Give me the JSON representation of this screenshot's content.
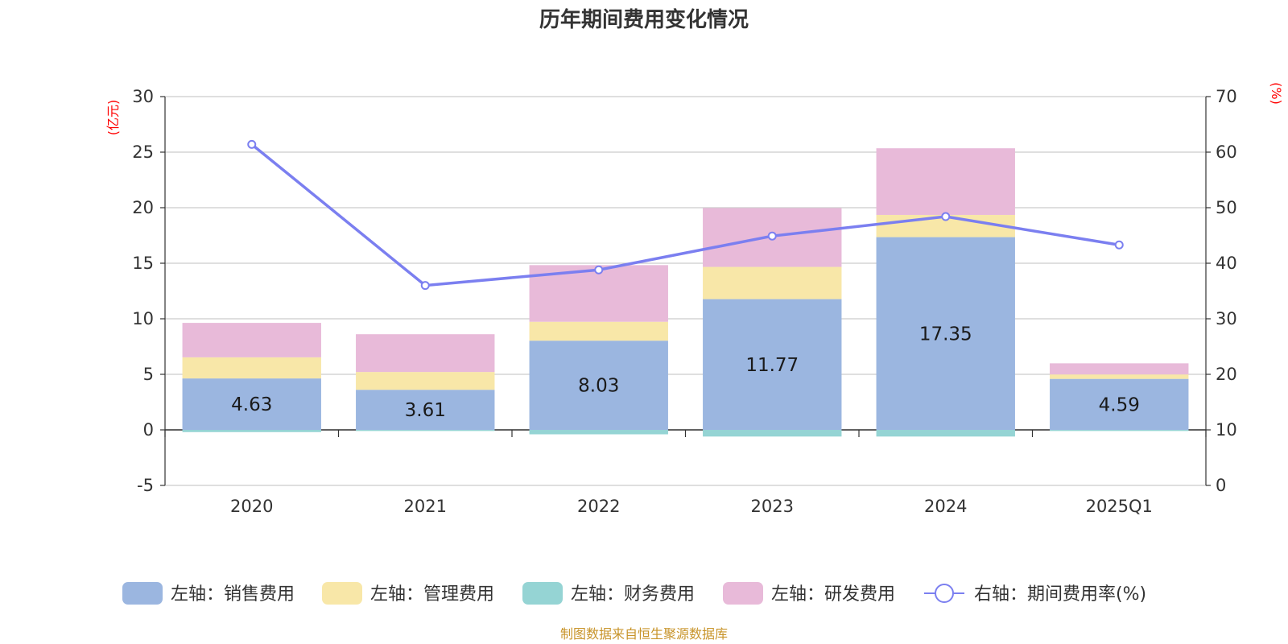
{
  "chart_data": {
    "type": "bar",
    "title": "历年期间费用变化情况",
    "categories": [
      "2020",
      "2021",
      "2022",
      "2023",
      "2024",
      "2025Q1"
    ],
    "left_axis": {
      "unit": "(亿元)",
      "ylim": [
        -5,
        30
      ],
      "ticks": [
        "-5",
        "0",
        "5",
        "10",
        "15",
        "20",
        "25",
        "30"
      ]
    },
    "right_axis": {
      "unit": "(%)",
      "ylim": [
        0,
        70
      ],
      "ticks": [
        "0",
        "10",
        "20",
        "30",
        "40",
        "50",
        "60",
        "70"
      ]
    },
    "series": [
      {
        "name": "左轴：销售费用",
        "kind": "bar",
        "color": "#9bb6e0",
        "values": [
          4.63,
          3.61,
          8.03,
          11.77,
          17.35,
          4.59
        ],
        "labels": [
          "4.63",
          "3.61",
          "8.03",
          "11.77",
          "17.35",
          "4.59"
        ]
      },
      {
        "name": "左轴：管理费用",
        "kind": "bar",
        "color": "#f8e7a8",
        "values": [
          1.9,
          1.6,
          1.7,
          2.9,
          2.0,
          0.4
        ]
      },
      {
        "name": "左轴：财务费用",
        "kind": "bar",
        "color": "#95d4d4",
        "values": [
          -0.2,
          -0.1,
          -0.4,
          -0.6,
          -0.6,
          -0.1
        ]
      },
      {
        "name": "左轴：研发费用",
        "kind": "bar",
        "color": "#e8bad9",
        "values": [
          3.1,
          3.4,
          5.1,
          5.3,
          6.0,
          1.0
        ]
      },
      {
        "name": "右轴：期间费用率(%)",
        "kind": "line",
        "color": "#7b7ff0",
        "values": [
          61.4,
          36.0,
          38.8,
          44.9,
          48.4,
          43.3
        ]
      }
    ]
  },
  "source": "制图数据来自恒生聚源数据库"
}
